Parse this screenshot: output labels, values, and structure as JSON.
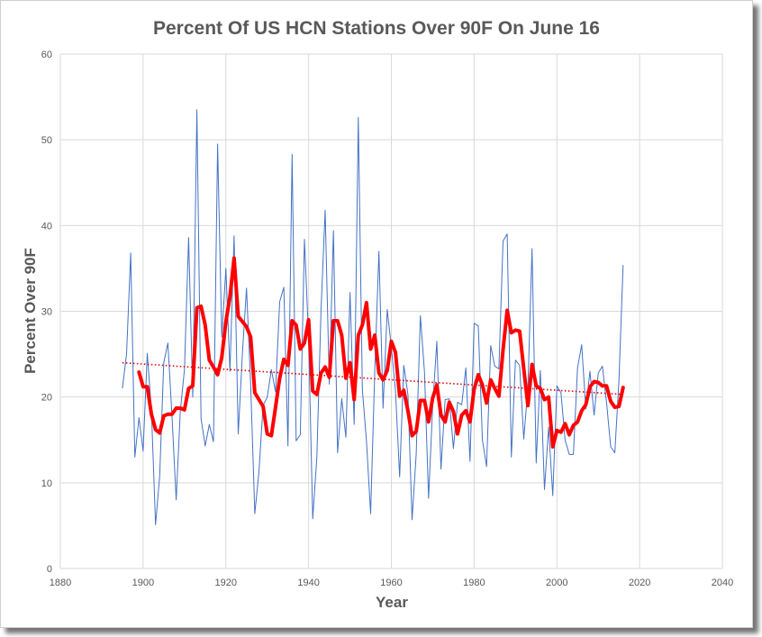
{
  "chart_data": {
    "type": "line",
    "title": "Percent Of US HCN Stations Over 90F On June 16",
    "xlabel": "Year",
    "ylabel": "Percent Over 90F",
    "xlim": [
      1880,
      2040
    ],
    "ylim": [
      0,
      60
    ],
    "xticks": [
      "1880",
      "1900",
      "1920",
      "1940",
      "1960",
      "1980",
      "2000",
      "2020",
      "2040"
    ],
    "yticks": [
      "0",
      "10",
      "20",
      "30",
      "40",
      "50",
      "60"
    ],
    "grid": true,
    "colors": {
      "annual": "#4472c4",
      "smooth": "#ff0000",
      "trend": "#e00000",
      "grid": "#d9d9d9"
    },
    "series": [
      {
        "style": "thin-blue-line",
        "x": [
          1895,
          1896,
          1897,
          1898,
          1899,
          1900,
          1901,
          1902,
          1903,
          1904,
          1905,
          1906,
          1907,
          1908,
          1909,
          1910,
          1911,
          1912,
          1913,
          1914,
          1915,
          1916,
          1917,
          1918,
          1919,
          1920,
          1921,
          1922,
          1923,
          1924,
          1925,
          1926,
          1927,
          1928,
          1929,
          1930,
          1931,
          1932,
          1933,
          1934,
          1935,
          1936,
          1937,
          1938,
          1939,
          1940,
          1941,
          1942,
          1943,
          1944,
          1945,
          1946,
          1947,
          1948,
          1949,
          1950,
          1951,
          1952,
          1953,
          1954,
          1955,
          1956,
          1957,
          1958,
          1959,
          1960,
          1961,
          1962,
          1963,
          1964,
          1965,
          1966,
          1967,
          1968,
          1969,
          1970,
          1971,
          1972,
          1973,
          1974,
          1975,
          1976,
          1977,
          1978,
          1979,
          1980,
          1981,
          1982,
          1983,
          1984,
          1985,
          1986,
          1987,
          1988,
          1989,
          1990,
          1991,
          1992,
          1993,
          1994,
          1995,
          1996,
          1997,
          1998,
          1999,
          2000,
          2001,
          2002,
          2003,
          2004,
          2005,
          2006,
          2007,
          2008,
          2009,
          2010,
          2011,
          2012,
          2013,
          2014,
          2015,
          2016
        ],
        "y": [
          21,
          25,
          36.8,
          13,
          17.6,
          13.7,
          25.1,
          18.5,
          5.1,
          10.8,
          24,
          26.3,
          17.7,
          8,
          18.4,
          23.2,
          38.6,
          20,
          53.5,
          17.5,
          14.3,
          16.8,
          14.8,
          49.5,
          27,
          35,
          23,
          38.8,
          15.7,
          25,
          32.7,
          21.5,
          6.4,
          11.3,
          19,
          20,
          23.2,
          20.6,
          31.1,
          32.8,
          14.3,
          48.3,
          14.9,
          15.6,
          38.4,
          27,
          5.8,
          13,
          30.1,
          41.8,
          21.5,
          39.4,
          13.5,
          19.8,
          15.3,
          32.2,
          16.8,
          52.6,
          20.9,
          14.8,
          6.4,
          23.1,
          37,
          18.7,
          30.2,
          25.8,
          20.7,
          10.7,
          23.7,
          20.3,
          5.7,
          13.4,
          29.5,
          22.9,
          8.2,
          19,
          26.5,
          11.6,
          19.7,
          19.8,
          14,
          19.4,
          19.1,
          23.4,
          12.5,
          28.6,
          28.3,
          15,
          11.9,
          26,
          23.6,
          23.3,
          38.2,
          39,
          13,
          24.3,
          23.7,
          15.1,
          21.1,
          37.3,
          12.3,
          23.1,
          9.2,
          16.5,
          8.5,
          21.3,
          20.5,
          15,
          13.3,
          13.3,
          23.4,
          26.1,
          18.6,
          23,
          17.9,
          22.8,
          23.6,
          19.4,
          14.2,
          13.5,
          22,
          35.4
        ]
      },
      {
        "style": "thick-red-moving-average",
        "x": [
          1899,
          1900,
          1901,
          1902,
          1903,
          1904,
          1905,
          1906,
          1907,
          1908,
          1909,
          1910,
          1911,
          1912,
          1913,
          1914,
          1915,
          1916,
          1917,
          1918,
          1919,
          1920,
          1921,
          1922,
          1923,
          1924,
          1925,
          1926,
          1927,
          1928,
          1929,
          1930,
          1931,
          1932,
          1933,
          1934,
          1935,
          1936,
          1937,
          1938,
          1939,
          1940,
          1941,
          1942,
          1943,
          1944,
          1945,
          1946,
          1947,
          1948,
          1949,
          1950,
          1951,
          1952,
          1953,
          1954,
          1955,
          1956,
          1957,
          1958,
          1959,
          1960,
          1961,
          1962,
          1963,
          1964,
          1965,
          1966,
          1967,
          1968,
          1969,
          1970,
          1971,
          1972,
          1973,
          1974,
          1975,
          1976,
          1977,
          1978,
          1979,
          1980,
          1981,
          1982,
          1983,
          1984,
          1985,
          1986,
          1987,
          1988,
          1989,
          1990,
          1991,
          1992,
          1993,
          1994,
          1995,
          1996,
          1997,
          1998,
          1999,
          2000,
          2001,
          2002,
          2003,
          2004,
          2005,
          2006,
          2007,
          2008,
          2009,
          2010,
          2011,
          2012,
          2013,
          2014,
          2015,
          2016
        ],
        "y": [
          22.9,
          21.2,
          21.2,
          18,
          16.2,
          15.8,
          17.8,
          18,
          18,
          18.7,
          18.7,
          18.5,
          21,
          21.3,
          30.4,
          30.6,
          28.4,
          24.3,
          23.5,
          22.6,
          24.6,
          28.8,
          31.7,
          36.2,
          29.4,
          28.8,
          28.2,
          27,
          20.5,
          19.7,
          18.9,
          15.7,
          15.5,
          18.8,
          22.2,
          24.4,
          23.7,
          28.9,
          28.4,
          25.6,
          26.3,
          29,
          20.7,
          20.3,
          22.8,
          23.5,
          22.3,
          28.9,
          28.9,
          27.2,
          22.2,
          24,
          19.7,
          27.2,
          28.4,
          31,
          25.6,
          27.2,
          22.8,
          22,
          23.1,
          26.5,
          25.2,
          20.1,
          20.8,
          18.4,
          15.5,
          16,
          19.6,
          19.6,
          17.1,
          19.9,
          21.4,
          17.9,
          17.1,
          19.4,
          18.3,
          15.7,
          17.9,
          18.4,
          17.1,
          20.9,
          22.6,
          21.4,
          19.3,
          22,
          21,
          20.1,
          25.5,
          30.1,
          27.5,
          27.8,
          27.7,
          23.3,
          19,
          23.8,
          21.3,
          21,
          19.7,
          20,
          14.2,
          16.1,
          15.9,
          16.9,
          15.6,
          16.7,
          17.1,
          18.4,
          19.1,
          21.2,
          21.8,
          21.7,
          21.3,
          21.3,
          19.5,
          18.8,
          18.9,
          21.1
        ]
      },
      {
        "style": "dotted-red-linear-trend",
        "x": [
          1895,
          2016
        ],
        "y": [
          24.0,
          20.3
        ]
      }
    ]
  }
}
